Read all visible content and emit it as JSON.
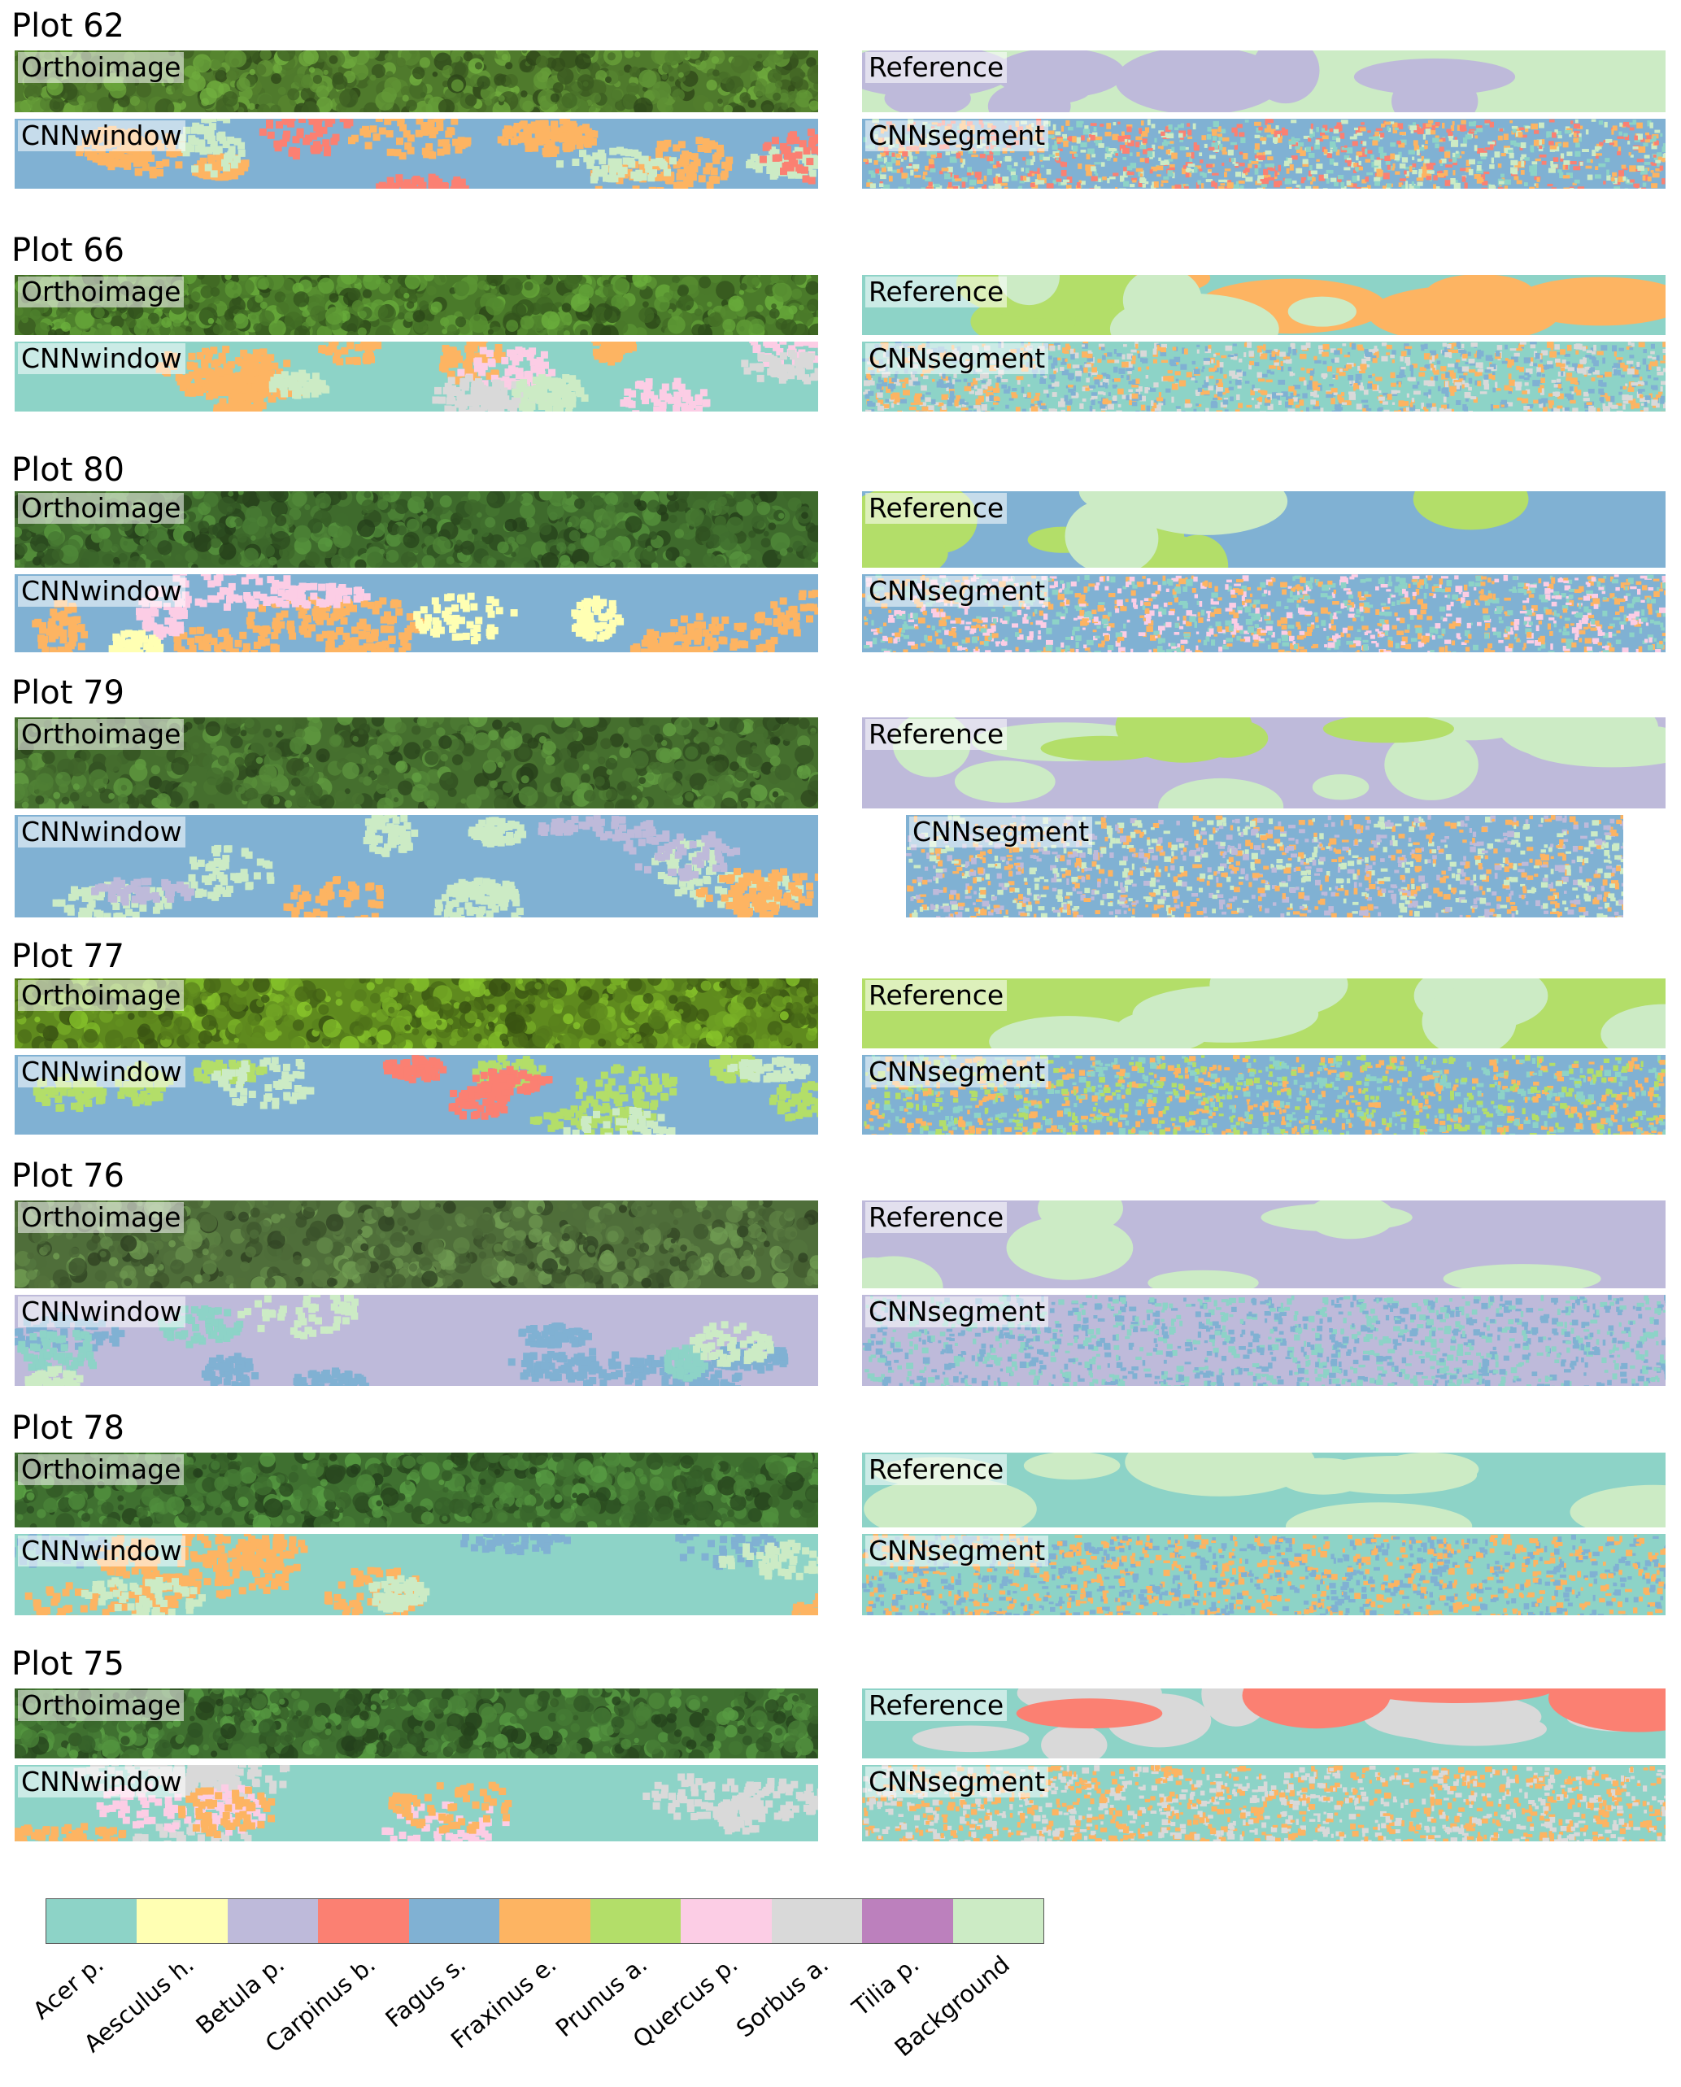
{
  "classes": [
    {
      "name": "Acer p.",
      "color": "#8dd3c7"
    },
    {
      "name": "Aesculus h.",
      "color": "#ffffb3"
    },
    {
      "name": "Betula p.",
      "color": "#bebada"
    },
    {
      "name": "Carpinus b.",
      "color": "#fb8072"
    },
    {
      "name": "Fagus s.",
      "color": "#80b1d3"
    },
    {
      "name": "Fraxinus e.",
      "color": "#fdb462"
    },
    {
      "name": "Prunus a.",
      "color": "#b3de69"
    },
    {
      "name": "Quercus p.",
      "color": "#fccde5"
    },
    {
      "name": "Sorbus a.",
      "color": "#d9d9d9"
    },
    {
      "name": "Tilia p.",
      "color": "#bc80bd"
    },
    {
      "name": "Background",
      "color": "#ccebc5"
    }
  ],
  "panel_labels": {
    "ortho": "Orthoimage",
    "reference": "Reference",
    "cnnwindow": "CNNwindow",
    "cnnsegment": "CNNsegment"
  },
  "plots": [
    {
      "title": "Plot 62",
      "ortho_tone": "#4f7a2c",
      "reference": {
        "base": "Background",
        "patches": [
          "Betula p."
        ]
      },
      "cnnwindow": {
        "base": "Fagus s.",
        "patches": [
          "Fraxinus e.",
          "Background",
          "Carpinus b."
        ]
      },
      "cnnsegment": {
        "base": "Fagus s.",
        "patches": [
          "Fraxinus e.",
          "Carpinus b.",
          "Acer p.",
          "Background"
        ]
      }
    },
    {
      "title": "Plot 66",
      "ortho_tone": "#4a7a2a",
      "reference": {
        "base": "Acer p.",
        "patches": [
          "Fraxinus e.",
          "Prunus a.",
          "Background"
        ]
      },
      "cnnwindow": {
        "base": "Acer p.",
        "patches": [
          "Fraxinus e.",
          "Quercus p.",
          "Sorbus a.",
          "Background"
        ]
      },
      "cnnsegment": {
        "base": "Acer p.",
        "patches": [
          "Fraxinus e.",
          "Sorbus a.",
          "Fagus s."
        ]
      }
    },
    {
      "title": "Plot 80",
      "ortho_tone": "#3e6a2c",
      "reference": {
        "base": "Fagus s.",
        "patches": [
          "Prunus a.",
          "Background"
        ]
      },
      "cnnwindow": {
        "base": "Fagus s.",
        "patches": [
          "Fraxinus e.",
          "Quercus p.",
          "Aesculus h."
        ]
      },
      "cnnsegment": {
        "base": "Fagus s.",
        "patches": [
          "Acer p.",
          "Fraxinus e.",
          "Quercus p."
        ]
      }
    },
    {
      "title": "Plot 79",
      "ortho_tone": "#456f2e",
      "reference": {
        "base": "Betula p.",
        "patches": [
          "Background",
          "Prunus a."
        ]
      },
      "cnnwindow": {
        "base": "Fagus s.",
        "patches": [
          "Background",
          "Fraxinus e.",
          "Betula p."
        ]
      },
      "cnnsegment": {
        "base": "Fagus s.",
        "patches": [
          "Background",
          "Betula p.",
          "Fraxinus e."
        ]
      }
    },
    {
      "title": "Plot 77",
      "ortho_tone": "#5f8a1e",
      "reference": {
        "base": "Prunus a.",
        "patches": [
          "Background"
        ]
      },
      "cnnwindow": {
        "base": "Fagus s.",
        "patches": [
          "Prunus a.",
          "Carpinus b.",
          "Background"
        ]
      },
      "cnnsegment": {
        "base": "Fagus s.",
        "patches": [
          "Prunus a.",
          "Fraxinus e.",
          "Acer p."
        ]
      }
    },
    {
      "title": "Plot 76",
      "ortho_tone": "#4f6e3a",
      "reference": {
        "base": "Betula p.",
        "patches": [
          "Background"
        ]
      },
      "cnnwindow": {
        "base": "Betula p.",
        "patches": [
          "Fagus s.",
          "Acer p.",
          "Background"
        ]
      },
      "cnnsegment": {
        "base": "Betula p.",
        "patches": [
          "Fagus s.",
          "Acer p."
        ]
      }
    },
    {
      "title": "Plot 78",
      "ortho_tone": "#3f7030",
      "reference": {
        "base": "Acer p.",
        "patches": [
          "Background"
        ]
      },
      "cnnwindow": {
        "base": "Acer p.",
        "patches": [
          "Fraxinus e.",
          "Fagus s.",
          "Background"
        ]
      },
      "cnnsegment": {
        "base": "Acer p.",
        "patches": [
          "Fraxinus e.",
          "Fagus s."
        ]
      }
    },
    {
      "title": "Plot 75",
      "ortho_tone": "#3f7030",
      "reference": {
        "base": "Acer p.",
        "patches": [
          "Sorbus a.",
          "Carpinus b."
        ]
      },
      "cnnwindow": {
        "base": "Acer p.",
        "patches": [
          "Sorbus a.",
          "Quercus p.",
          "Fraxinus e."
        ]
      },
      "cnnsegment": {
        "base": "Acer p.",
        "patches": [
          "Sorbus a.",
          "Fraxinus e."
        ]
      }
    }
  ]
}
